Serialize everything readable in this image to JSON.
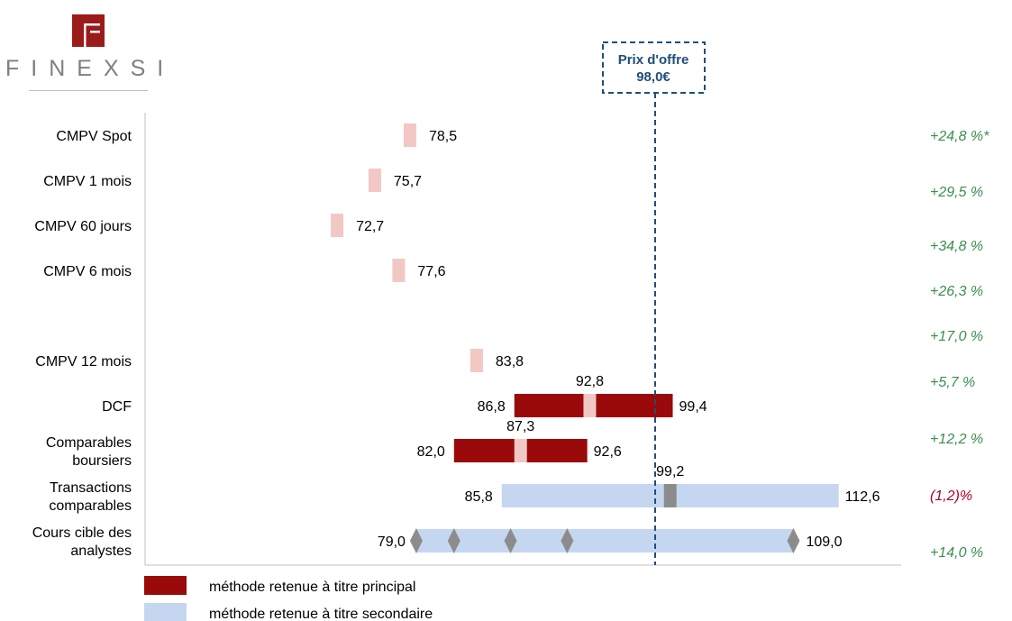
{
  "logo": {
    "text": "FINEXSI",
    "color": "#9b1b1b"
  },
  "offer_price": {
    "label": "Prix d'offre",
    "value_label": "98,0€",
    "value": 98.0,
    "color": "#1f4e79"
  },
  "colors": {
    "principal": "#9b0a0a",
    "secondary": "#c5d7f0",
    "spot": "#f2c8c4",
    "marker": "#8c8c8c",
    "positive": "#3a8f4f",
    "negative": "#b00020"
  },
  "legend": [
    {
      "label": "méthode retenue à titre principal",
      "color": "#9b0a0a"
    },
    {
      "label": "méthode retenue à titre secondaire",
      "color": "#c5d7f0"
    }
  ],
  "chart_data": {
    "type": "range_bar",
    "xlim": [
      40,
      140
    ],
    "rows": [
      {
        "label": [
          "CMPV Spot"
        ],
        "kind": "point",
        "value": 78.5,
        "value_label": "78,5"
      },
      {
        "label": [
          "CMPV 1 mois"
        ],
        "kind": "point",
        "value": 75.7,
        "value_label": "75,7"
      },
      {
        "label": [
          "CMPV 60 jours"
        ],
        "kind": "point",
        "value": 72.7,
        "value_label": "72,7"
      },
      {
        "label": [
          "CMPV 6 mois"
        ],
        "kind": "point",
        "value": 77.6,
        "value_label": "77,6"
      },
      {
        "label": [
          "CMPV 12 mois"
        ],
        "kind": "point",
        "value": 83.8,
        "value_label": "83,8"
      },
      {
        "label": [
          "DCF"
        ],
        "kind": "principal",
        "low": 86.8,
        "central": 92.8,
        "high": 99.4,
        "low_label": "86,8",
        "central_label": "92,8",
        "high_label": "99,4"
      },
      {
        "label": [
          "Comparables",
          "boursiers"
        ],
        "kind": "principal",
        "low": 82.0,
        "central": 87.3,
        "high": 92.6,
        "low_label": "82,0",
        "central_label": "87,3",
        "high_label": "92,6"
      },
      {
        "label": [
          "Transactions",
          "comparables"
        ],
        "kind": "secondary",
        "low": 85.8,
        "central": 99.2,
        "high": 112.6,
        "low_label": "85,8",
        "central_label": "99,2",
        "high_label": "112,6"
      },
      {
        "label": [
          "Cours cible des",
          "analystes"
        ],
        "kind": "analysts",
        "low": 79.0,
        "high": 109.0,
        "targets": [
          79.0,
          82.0,
          86.5,
          91.0,
          109.0
        ],
        "low_label": "79,0",
        "high_label": "109,0"
      }
    ],
    "premiums": [
      {
        "text": "+24,8 %*",
        "sign": "positive"
      },
      {
        "text": "+29,5 %",
        "sign": "positive"
      },
      {
        "text": "+34,8 %",
        "sign": "positive"
      },
      {
        "text": "+26,3 %",
        "sign": "positive"
      },
      {
        "text": "+17,0 %",
        "sign": "positive"
      },
      {
        "text": "+5,7 %",
        "sign": "positive"
      },
      {
        "text": "+12,2 %",
        "sign": "positive"
      },
      {
        "text": "(1,2)%",
        "sign": "negative"
      },
      {
        "text": "+14,0 %",
        "sign": "positive"
      }
    ]
  }
}
